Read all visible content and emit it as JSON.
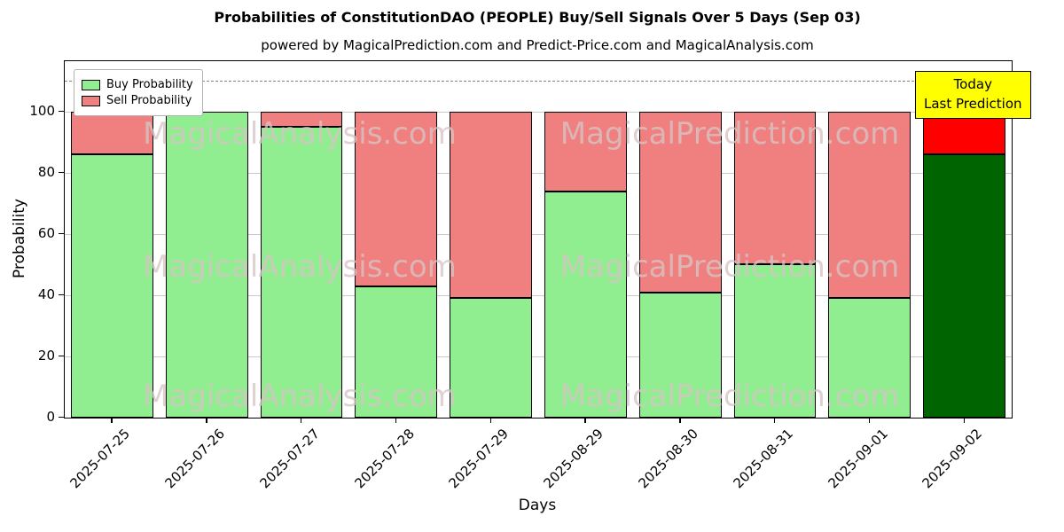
{
  "chart_data": {
    "type": "bar",
    "stacked": true,
    "title": "Probabilities of ConstitutionDAO (PEOPLE) Buy/Sell Signals Over 5 Days (Sep 03)",
    "subtitle": "powered by MagicalPrediction.com and Predict-Price.com and MagicalAnalysis.com",
    "xlabel": "Days",
    "ylabel": "Probability",
    "categories": [
      "2025-07-25",
      "2025-07-26",
      "2025-07-27",
      "2025-07-28",
      "2025-07-29",
      "2025-08-29",
      "2025-08-30",
      "2025-08-31",
      "2025-09-01",
      "2025-09-02"
    ],
    "series": [
      {
        "name": "Buy Probability",
        "values": [
          86,
          100,
          95,
          43,
          39,
          74,
          41,
          50,
          39,
          86
        ]
      },
      {
        "name": "Sell Probability",
        "values": [
          14,
          0,
          5,
          57,
          61,
          26,
          59,
          50,
          61,
          14
        ]
      }
    ],
    "ylim": [
      0,
      116.5
    ],
    "yticks": [
      0,
      20,
      40,
      60,
      80,
      100
    ],
    "grid": true,
    "dashed_line_y": 110,
    "legend_position": "upper left",
    "colors": {
      "buy": "#90ee90",
      "sell": "#f08080",
      "today_buy": "#006400",
      "today_sell": "#ff0000",
      "annotation_bg": "#ffff00"
    },
    "annotation": {
      "line1": "Today",
      "line2": "Last Prediction"
    },
    "watermarks": [
      "MagicalAnalysis.com",
      "MagicalPrediction.com"
    ]
  }
}
